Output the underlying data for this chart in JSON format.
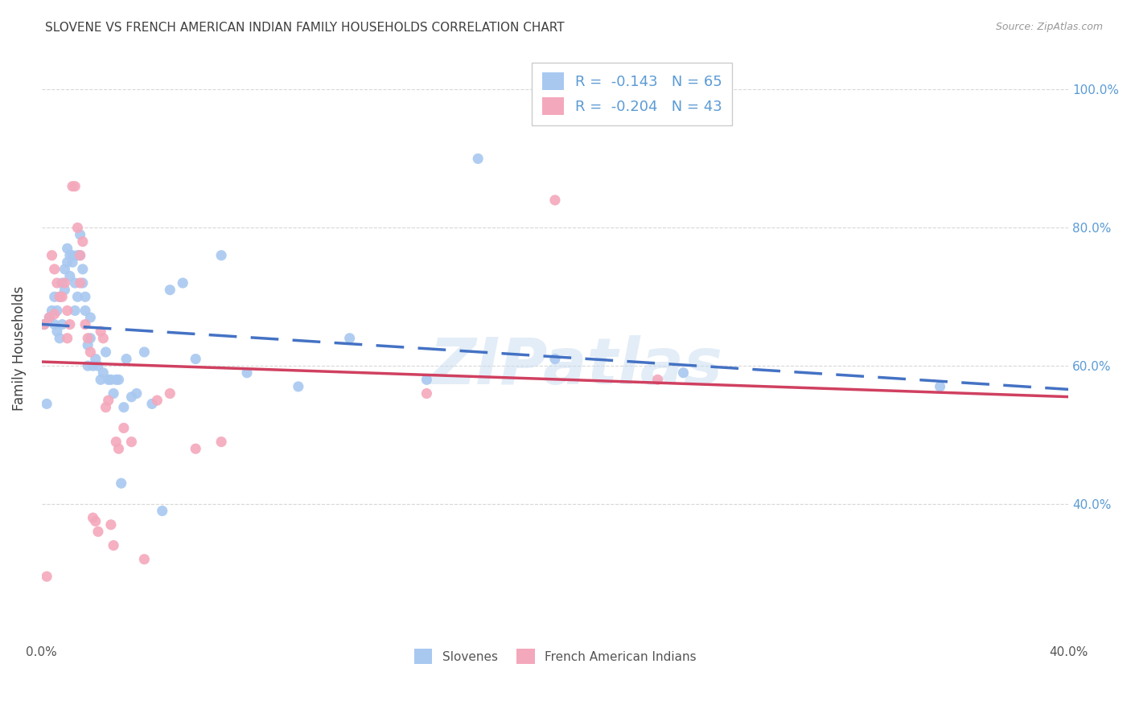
{
  "title": "SLOVENE VS FRENCH AMERICAN INDIAN FAMILY HOUSEHOLDS CORRELATION CHART",
  "source": "Source: ZipAtlas.com",
  "ylabel": "Family Households",
  "xlim": [
    0.0,
    0.4
  ],
  "ylim": [
    0.2,
    1.05
  ],
  "ytick_positions": [
    0.4,
    0.6,
    0.8,
    1.0
  ],
  "ytick_labels": [
    "40.0%",
    "60.0%",
    "80.0%",
    "100.0%"
  ],
  "xtick_positions": [
    0.0,
    0.05,
    0.1,
    0.15,
    0.2,
    0.25,
    0.3,
    0.35,
    0.4
  ],
  "xtick_labels": [
    "0.0%",
    "",
    "",
    "",
    "",
    "",
    "",
    "",
    "40.0%"
  ],
  "watermark": "ZIPatlas",
  "blue_R": "-0.143",
  "blue_N": "65",
  "pink_R": "-0.204",
  "pink_N": "43",
  "blue_color": "#A8C8F0",
  "pink_color": "#F4A8BC",
  "blue_line_color": "#4472C4",
  "pink_line_color": "#D04060",
  "grid_color": "#D8D8D8",
  "background_color": "#FFFFFF",
  "title_color": "#404040",
  "axis_label_color": "#404040",
  "right_tick_color": "#5B9BD5",
  "slovenes_x": [
    0.001,
    0.002,
    0.003,
    0.004,
    0.005,
    0.005,
    0.006,
    0.006,
    0.007,
    0.007,
    0.008,
    0.008,
    0.009,
    0.009,
    0.01,
    0.01,
    0.011,
    0.011,
    0.012,
    0.012,
    0.013,
    0.013,
    0.014,
    0.014,
    0.015,
    0.015,
    0.016,
    0.016,
    0.017,
    0.017,
    0.018,
    0.018,
    0.019,
    0.019,
    0.02,
    0.021,
    0.022,
    0.023,
    0.024,
    0.025,
    0.026,
    0.027,
    0.028,
    0.029,
    0.03,
    0.031,
    0.032,
    0.033,
    0.035,
    0.037,
    0.04,
    0.043,
    0.047,
    0.05,
    0.055,
    0.06,
    0.07,
    0.08,
    0.1,
    0.12,
    0.15,
    0.17,
    0.2,
    0.25,
    0.35
  ],
  "slovenes_y": [
    0.66,
    0.545,
    0.67,
    0.68,
    0.66,
    0.7,
    0.65,
    0.68,
    0.7,
    0.64,
    0.72,
    0.66,
    0.71,
    0.74,
    0.75,
    0.77,
    0.73,
    0.76,
    0.76,
    0.75,
    0.72,
    0.68,
    0.76,
    0.7,
    0.79,
    0.76,
    0.72,
    0.74,
    0.68,
    0.7,
    0.6,
    0.63,
    0.67,
    0.64,
    0.6,
    0.61,
    0.6,
    0.58,
    0.59,
    0.62,
    0.58,
    0.58,
    0.56,
    0.58,
    0.58,
    0.43,
    0.54,
    0.61,
    0.555,
    0.56,
    0.62,
    0.545,
    0.39,
    0.71,
    0.72,
    0.61,
    0.76,
    0.59,
    0.57,
    0.64,
    0.58,
    0.9,
    0.61,
    0.59,
    0.57
  ],
  "french_x": [
    0.001,
    0.002,
    0.003,
    0.004,
    0.005,
    0.006,
    0.007,
    0.008,
    0.009,
    0.01,
    0.011,
    0.012,
    0.013,
    0.014,
    0.015,
    0.016,
    0.017,
    0.018,
    0.019,
    0.02,
    0.021,
    0.022,
    0.023,
    0.024,
    0.025,
    0.026,
    0.027,
    0.028,
    0.029,
    0.03,
    0.032,
    0.035,
    0.04,
    0.045,
    0.05,
    0.06,
    0.07,
    0.15,
    0.2,
    0.24,
    0.005,
    0.01,
    0.015
  ],
  "french_y": [
    0.66,
    0.295,
    0.67,
    0.76,
    0.74,
    0.72,
    0.7,
    0.7,
    0.72,
    0.68,
    0.66,
    0.86,
    0.86,
    0.8,
    0.76,
    0.78,
    0.66,
    0.64,
    0.62,
    0.38,
    0.375,
    0.36,
    0.65,
    0.64,
    0.54,
    0.55,
    0.37,
    0.34,
    0.49,
    0.48,
    0.51,
    0.49,
    0.32,
    0.55,
    0.56,
    0.48,
    0.49,
    0.56,
    0.84,
    0.58,
    0.675,
    0.64,
    0.72
  ]
}
